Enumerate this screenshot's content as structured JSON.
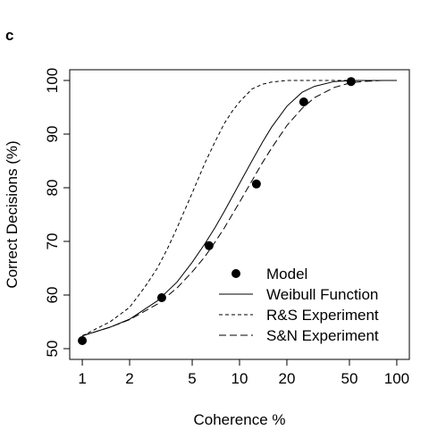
{
  "panel_label": "c",
  "chart_data": {
    "type": "line",
    "xlabel": "Coherence %",
    "ylabel": "Correct Decisions (%)",
    "x_scale": "log",
    "xlim": [
      1,
      100
    ],
    "ylim": [
      50,
      100
    ],
    "x_ticks": [
      1,
      2,
      5,
      10,
      20,
      50,
      100
    ],
    "y_ticks": [
      50,
      60,
      70,
      80,
      90,
      100
    ],
    "grid": false,
    "legend_position": "bottom-right",
    "series": [
      {
        "name": "Model",
        "style": "points",
        "color": "#000000",
        "x": [
          1,
          3.2,
          6.4,
          12.8,
          25.6,
          51.2
        ],
        "y": [
          51.5,
          59.5,
          69.2,
          80.7,
          96.0,
          99.8
        ]
      },
      {
        "name": "Weibull Function",
        "style": "solid",
        "color": "#000000",
        "x": [
          1,
          1.5,
          2,
          3,
          4,
          5,
          6,
          7,
          8,
          10,
          12,
          14,
          16,
          20,
          25,
          30,
          40,
          50,
          60,
          70,
          80,
          100
        ],
        "y": [
          52.4,
          54.0,
          55.5,
          58.9,
          62.4,
          66.1,
          69.5,
          72.6,
          75.6,
          80.8,
          85.0,
          88.5,
          91.3,
          95.2,
          97.8,
          98.9,
          99.8,
          99.95,
          100,
          100,
          100,
          100
        ]
      },
      {
        "name": "R&S Experiment",
        "style": "short-dash",
        "color": "#000000",
        "x": [
          1,
          1.5,
          2,
          2.5,
          3,
          3.5,
          4,
          5,
          6,
          7,
          8,
          9,
          10,
          12,
          14,
          16,
          20,
          25,
          30,
          40,
          50,
          60,
          80,
          100
        ],
        "y": [
          52.4,
          55.0,
          57.7,
          61.5,
          65.0,
          68.8,
          72.5,
          79.0,
          84.5,
          88.6,
          92.0,
          94.3,
          96.0,
          98.4,
          99.3,
          99.7,
          100,
          100,
          100,
          100,
          100,
          100,
          100,
          100
        ]
      },
      {
        "name": "S&N Experiment",
        "style": "long-dash",
        "color": "#000000",
        "x": [
          1,
          1.5,
          2,
          3,
          4,
          5,
          6,
          7,
          8,
          10,
          12,
          14,
          16,
          20,
          25,
          30,
          40,
          50,
          60,
          70,
          80,
          100
        ],
        "y": [
          52.4,
          54.0,
          55.4,
          58.3,
          61.3,
          64.3,
          67.1,
          69.9,
          72.5,
          77.3,
          81.3,
          84.7,
          87.4,
          91.6,
          94.8,
          96.8,
          98.7,
          99.5,
          99.8,
          99.9,
          100,
          100
        ]
      }
    ]
  }
}
